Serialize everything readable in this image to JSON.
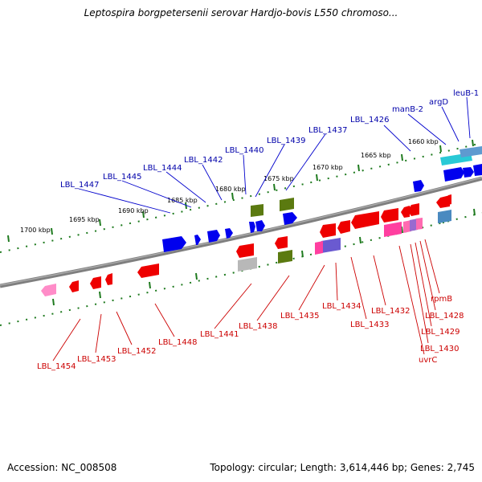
{
  "title": "Leptospira borgpetersenii serovar Hardjo-bovis L550 chromoso...",
  "footer": {
    "accession": "Accession: NC_008508",
    "summary": "Topology: circular; Length: 3,614,446 bp; Genes: 2,745"
  },
  "colors": {
    "backbone": "#7f7f7f",
    "tick": "#1e7a1e",
    "forward_label": "#0000aa",
    "reverse_label": "#cc0000",
    "forward_gene": "#0000ee",
    "reverse_gene": "#ee0000",
    "pseudo_pink": "#ff5fa0",
    "rna_cyan": "#29c9d6",
    "olive": "#5b7a10"
  },
  "kbp_labels": [
    "1660 kbp",
    "1665 kbp",
    "1670 kbp",
    "1675 kbp",
    "1680 kbp",
    "1685 kbp",
    "1690 kbp",
    "1695 kbp",
    "1700 kbp"
  ],
  "forward_labels": [
    "leuB-1",
    "argD",
    "manB-2",
    "LBL_1426",
    "LBL_1437",
    "LBL_1439",
    "LBL_1440",
    "LBL_1442",
    "LBL_1444",
    "LBL_1445",
    "LBL_1447"
  ],
  "reverse_labels": [
    "rpmB",
    "LBL_1428",
    "LBL_1429",
    "LBL_1430",
    "uvrC",
    "LBL_1432",
    "LBL_1433",
    "LBL_1434",
    "LBL_1435",
    "LBL_1438",
    "LBL_1441",
    "LBL_1448",
    "LBL_1452",
    "LBL_1453",
    "LBL_1454"
  ]
}
